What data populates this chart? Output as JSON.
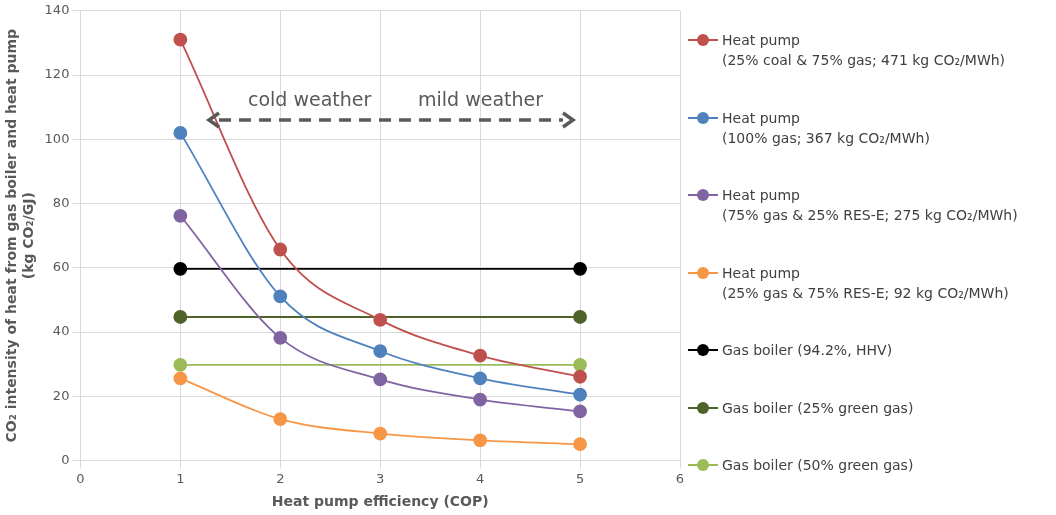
{
  "chart_data": {
    "type": "line",
    "xlabel": "Heat pump efficiency (COP)",
    "ylabel": "CO₂ intensity of heat from gas boiler and heat pump (kg CO₂/GJ)",
    "annotations": [
      "cold weather",
      "mild weather"
    ],
    "xlim": [
      0,
      6
    ],
    "xticks": [
      0,
      1,
      2,
      3,
      4,
      5,
      6
    ],
    "ylim": [
      0,
      140
    ],
    "yticks": [
      0,
      20,
      40,
      60,
      80,
      100,
      120,
      140
    ],
    "grid": true,
    "legend": "right",
    "marker": "circle",
    "series": [
      {
        "name": "Heat pump (25% coal & 75% gas; 471 kg CO₂/MWh)",
        "color": "#c0504d",
        "x": [
          1,
          2,
          3,
          4,
          5
        ],
        "values": [
          131,
          65.7,
          43.8,
          32.7,
          26.1
        ]
      },
      {
        "name": "Heat pump (100% gas; 367 kg CO₂/MWh)",
        "color": "#4f81bd",
        "x": [
          1,
          2,
          3,
          4,
          5
        ],
        "values": [
          102,
          51.1,
          34.1,
          25.6,
          20.5
        ]
      },
      {
        "name": "Heat pump (75% gas & 25% RES-E; 275 kg CO₂/MWh)",
        "color": "#8064a2",
        "x": [
          1,
          2,
          3,
          4,
          5
        ],
        "values": [
          76.2,
          38.2,
          25.3,
          19,
          15.3
        ]
      },
      {
        "name": "Heat pump (25% gas & 75% RES-E; 92 kg CO₂/MWh)",
        "color": "#f79646",
        "x": [
          1,
          2,
          3,
          4,
          5
        ],
        "values": [
          25.6,
          12.9,
          8.4,
          6.3,
          5.1
        ]
      },
      {
        "name": "Gas boiler (94.2%, HHV)",
        "color": "#000000",
        "x": [
          1,
          5
        ],
        "values": [
          59.7,
          59.7
        ]
      },
      {
        "name": "Gas boiler (25% green gas)",
        "color": "#4f6228",
        "x": [
          1,
          5
        ],
        "values": [
          44.7,
          44.7
        ]
      },
      {
        "name": "Gas boiler (50% green gas)",
        "color": "#9bbb59",
        "x": [
          1,
          5
        ],
        "values": [
          29.8,
          29.8
        ]
      }
    ]
  }
}
